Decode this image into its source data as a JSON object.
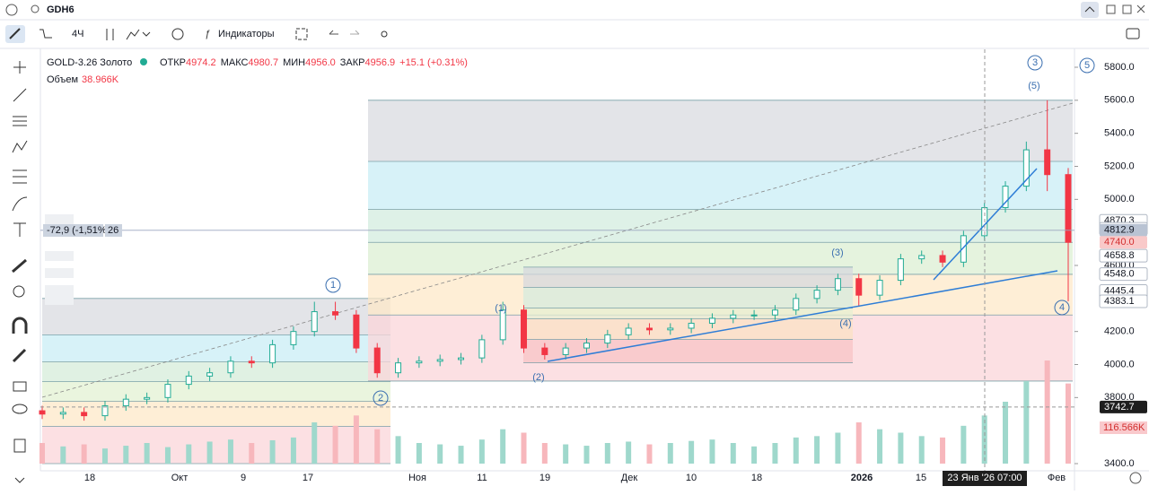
{
  "toolbar": {
    "symbol": "GDH6",
    "interval": "4Ч",
    "indicators": "Индикаторы"
  },
  "legend": {
    "name": "GOLD-3.26 Золото",
    "open_label": "ОТКР",
    "open": "4974.2",
    "high_label": "МАКС",
    "high": "4980.7",
    "low_label": "МИН",
    "low": "4956.0",
    "close_label": "ЗАКР",
    "close": "4956.9",
    "change": "+15.1 (+0.31%)",
    "volume_label": "Объем",
    "volume": "38.966K"
  },
  "order_widget": {
    "change": "-72,9 (-1,51%)",
    "qty": "26"
  },
  "chart_data": {
    "type": "candlestick",
    "open": [
      3720,
      3700,
      3710,
      3690,
      3750,
      3790,
      3800,
      3880,
      3930,
      3950,
      4020,
      4010,
      4120,
      4200,
      4320,
      4300,
      4100,
      3950,
      4010,
      4020,
      4030,
      4040,
      4150,
      4330,
      4100,
      4060,
      4100,
      4130,
      4180,
      4220,
      4210,
      4220,
      4250,
      4280,
      4300,
      4300,
      4330,
      4400,
      4450,
      4520,
      4420,
      4510,
      4640,
      4660,
      4620,
      4780,
      4950,
      5080,
      5300,
      5150
    ],
    "high": [
      3750,
      3740,
      3740,
      3780,
      3820,
      3830,
      3910,
      3960,
      3980,
      4050,
      4050,
      4150,
      4230,
      4380,
      4380,
      4330,
      4130,
      4040,
      4050,
      4060,
      4070,
      4180,
      4380,
      4360,
      4130,
      4130,
      4160,
      4210,
      4250,
      4250,
      4250,
      4280,
      4310,
      4330,
      4330,
      4360,
      4430,
      4480,
      4550,
      4550,
      4540,
      4670,
      4690,
      4690,
      4810,
      4980,
      5110,
      5350,
      5600,
      5190
    ],
    "low": [
      3670,
      3670,
      3660,
      3660,
      3720,
      3760,
      3770,
      3850,
      3900,
      3920,
      3980,
      3980,
      4090,
      4170,
      4270,
      4070,
      3920,
      3920,
      3980,
      3990,
      4000,
      4010,
      4120,
      4070,
      4030,
      4030,
      4070,
      4100,
      4150,
      4180,
      4180,
      4190,
      4220,
      4250,
      4270,
      4270,
      4300,
      4370,
      4420,
      4350,
      4390,
      4480,
      4610,
      4590,
      4590,
      4750,
      4920,
      5050,
      5050,
      4383
    ],
    "close": [
      3700,
      3710,
      3690,
      3750,
      3790,
      3800,
      3880,
      3930,
      3950,
      4020,
      4010,
      4120,
      4200,
      4320,
      4300,
      4100,
      3950,
      4010,
      4020,
      4030,
      4040,
      4150,
      4330,
      4100,
      4060,
      4100,
      4130,
      4180,
      4220,
      4210,
      4220,
      4250,
      4280,
      4300,
      4300,
      4330,
      4400,
      4450,
      4520,
      4420,
      4510,
      4640,
      4660,
      4620,
      4780,
      4950,
      5080,
      5300,
      5150,
      4740
    ],
    "volumes": [
      30000,
      25000,
      28000,
      22000,
      26000,
      30000,
      24000,
      28000,
      32000,
      35000,
      30000,
      34000,
      38000,
      60000,
      55000,
      70000,
      50000,
      40000,
      30000,
      28000,
      26000,
      35000,
      50000,
      45000,
      30000,
      28000,
      26000,
      30000,
      32000,
      28000,
      30000,
      33000,
      35000,
      30000,
      25000,
      30000,
      38000,
      40000,
      45000,
      60000,
      50000,
      45000,
      40000,
      38000,
      55000,
      70000,
      90000,
      120000,
      150000,
      116566
    ],
    "ylim": [
      3400,
      5800
    ],
    "yticks": [
      {
        "value": 5800,
        "label": "5800.0"
      },
      {
        "value": 5600,
        "label": "5600.0"
      },
      {
        "value": 5400,
        "label": "5400.0"
      },
      {
        "value": 5200,
        "label": "5200.0"
      },
      {
        "value": 5000,
        "label": "5000.0"
      },
      {
        "value": 4600,
        "label": "4600.0"
      },
      {
        "value": 4200,
        "label": "4200.0"
      },
      {
        "value": 4000,
        "label": "4000.0"
      },
      {
        "value": 3800,
        "label": "3800.0"
      },
      {
        "value": 3400,
        "label": "3400.0"
      }
    ],
    "price_tags": [
      {
        "value": 4870.3,
        "label": "4870.3"
      },
      {
        "value": 4822,
        "label": "4822.0"
      },
      {
        "value": 4812.9,
        "label": "4812.9",
        "bg": "#b9c3d3",
        "color": "#131722"
      },
      {
        "value": 4740,
        "label": "4740.0",
        "bg": "#f9c9c9",
        "color": "#d32f2f"
      },
      {
        "value": 4658.8,
        "label": "4658.8"
      },
      {
        "value": 4548,
        "label": "4548.0"
      },
      {
        "value": 4445.4,
        "label": "4445.4"
      },
      {
        "value": 4383.1,
        "label": "4383.1"
      },
      {
        "value": 3742.7,
        "label": "3742.7",
        "bg": "#1e1e1e",
        "color": "#ffffff"
      }
    ],
    "volume_tag": "116.566K",
    "x_labels": [
      "18",
      "Окт",
      "9",
      "17",
      "Ноя",
      "11",
      "19",
      "Дек",
      "10",
      "18",
      "2026",
      "15",
      "Фев"
    ],
    "crosshair_label": "23 Янв '26  07:00",
    "fib_zones": [
      {
        "levels": [
          4400,
          4180,
          4017,
          3897,
          3778,
          3626,
          3400
        ],
        "colors": [
          "#d9dbe0",
          "#c9eef5",
          "#d6ecd9",
          "#e3f1d3",
          "#fde8c8",
          "#fbd5d9"
        ]
      },
      {
        "levels": [
          5600,
          5230,
          4940,
          4740,
          4546,
          4300,
          3900
        ],
        "colors": [
          "#d9dbe0",
          "#c9eef5",
          "#d3ecdf",
          "#dcefd3",
          "#fde8c8",
          "#fbd5d9"
        ]
      },
      {
        "levels": [
          4590,
          4467,
          4342,
          4277,
          4152,
          4010
        ],
        "colors": [
          "#d5d8dd",
          "#d6ebdd",
          "#e6efd2",
          "#fbe2c4",
          "#f8c4c6"
        ]
      }
    ],
    "waves": [
      "1",
      "2",
      "(1)",
      "(2)",
      "(3)",
      "(4)",
      "(5)",
      "3",
      "4",
      "5"
    ]
  }
}
